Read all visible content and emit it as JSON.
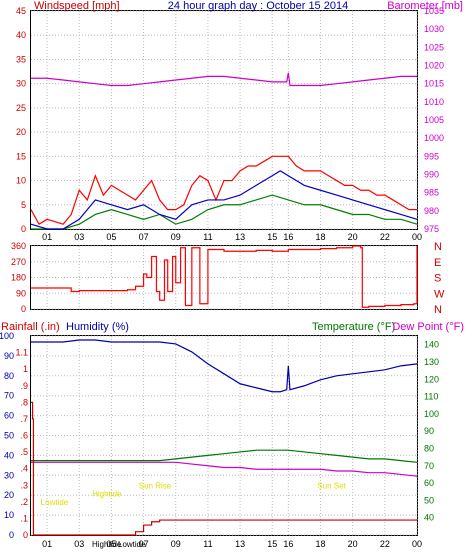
{
  "colors": {
    "frame": "#000000",
    "wind_red": "#ff0000",
    "wind_blue": "#0000cc",
    "wind_green": "#008000",
    "baro": "#cc00cc",
    "humidity": "#0000aa",
    "temp": "#007700",
    "dew": "#cc00cc",
    "rain": "#cc0000",
    "events": "#dddd00"
  },
  "chart_data": [
    {
      "type": "line",
      "title": "24 hour graph day : October 15 2014",
      "left_axis_label": "Windspeed [mph]",
      "right_axis_label": "Barometer [mb]",
      "x_ticks": [
        "01",
        "03",
        "05",
        "07",
        "09",
        "11",
        "13",
        "15",
        "16",
        "18",
        "20",
        "22",
        "00"
      ],
      "x_tick_hours": [
        1,
        3,
        5,
        7,
        9,
        11,
        13,
        15,
        16,
        18,
        20,
        22,
        24
      ],
      "x_range": [
        0,
        24
      ],
      "left_ticks": [
        0,
        5,
        10,
        15,
        20,
        25,
        30,
        35,
        40,
        45
      ],
      "left_range": [
        0,
        45
      ],
      "right_ticks": [
        975,
        980,
        985,
        990,
        995,
        1000,
        1005,
        1010,
        1015,
        1020,
        1025,
        1030,
        1035
      ],
      "right_range": [
        975,
        1035
      ],
      "grid": true,
      "series": [
        {
          "id": "gust",
          "color": "#ff0000",
          "x": [
            0,
            0.5,
            1,
            2,
            2.5,
            3,
            3.5,
            4,
            4.5,
            5,
            6,
            6.5,
            7,
            7.5,
            8,
            8.5,
            9,
            9.5,
            10,
            10.5,
            11,
            11.5,
            12,
            12.5,
            13,
            13.5,
            14,
            14.5,
            15,
            15.5,
            16,
            16.5,
            17,
            17.5,
            18,
            18.5,
            19,
            19.5,
            20,
            20.5,
            21,
            21.5,
            22,
            22.5,
            23,
            23.5,
            24
          ],
          "y": [
            4,
            1,
            2,
            1,
            3,
            8,
            6,
            11,
            7,
            9,
            7,
            6,
            8,
            10,
            6,
            4,
            4,
            5,
            9,
            11,
            10,
            6,
            10,
            10,
            12,
            13,
            13,
            14,
            15,
            15,
            15,
            13,
            12,
            12,
            12,
            11,
            10,
            9,
            9,
            8,
            8,
            7,
            7,
            6,
            5,
            4,
            4
          ]
        },
        {
          "id": "wind",
          "color": "#0000cc",
          "x": [
            0,
            1,
            2,
            3,
            3.5,
            4,
            5,
            6,
            7,
            8,
            9,
            10,
            11,
            12,
            13,
            14,
            15,
            15.5,
            16,
            17,
            18,
            19,
            20,
            21,
            22,
            23,
            24
          ],
          "y": [
            1,
            0,
            0,
            2,
            4,
            6,
            5,
            4,
            5,
            3,
            2,
            5,
            6,
            6,
            7,
            9,
            11,
            12,
            11,
            9,
            8,
            7,
            6,
            5,
            4,
            3,
            2
          ]
        },
        {
          "id": "avg",
          "color": "#008000",
          "x": [
            0,
            1,
            2,
            3,
            4,
            5,
            6,
            7,
            8,
            9,
            10,
            11,
            12,
            13,
            14,
            15,
            16,
            17,
            18,
            19,
            20,
            21,
            22,
            23,
            24
          ],
          "y": [
            0,
            0,
            0,
            1,
            3,
            4,
            3,
            2,
            3,
            1,
            2,
            4,
            5,
            5,
            6,
            7,
            6,
            5,
            5,
            4,
            3,
            3,
            2,
            2,
            1
          ]
        },
        {
          "id": "barometer",
          "axis": "right",
          "color": "#cc00cc",
          "x": [
            0,
            1,
            2,
            3,
            4,
            5,
            6,
            7,
            8,
            9,
            10,
            11,
            12,
            13,
            14,
            15,
            15.9,
            16,
            16.1,
            17,
            18,
            19,
            20,
            21,
            22,
            23,
            24
          ],
          "y": [
            1016.5,
            1016.5,
            1016,
            1015.5,
            1015,
            1014.5,
            1014.5,
            1015,
            1015.5,
            1016,
            1016.5,
            1017,
            1017,
            1016.5,
            1016,
            1015.5,
            1015.5,
            1018,
            1014.5,
            1014.5,
            1014.5,
            1015,
            1015.5,
            1016,
            1016.5,
            1017,
            1017
          ]
        }
      ]
    },
    {
      "type": "line",
      "left_ticks": [
        0,
        90,
        180,
        270,
        360
      ],
      "left_range": [
        0,
        360
      ],
      "right_labels": [
        "N",
        "W",
        "S",
        "E",
        "N"
      ],
      "x_range": [
        0,
        24
      ],
      "grid": true,
      "series": [
        {
          "id": "direction",
          "color": "#ff0000",
          "x": [
            0,
            1,
            2,
            2.5,
            3,
            4,
            5,
            6,
            6.5,
            7,
            7.2,
            7.5,
            7.8,
            8,
            8.3,
            8.5,
            8.8,
            9,
            9.3,
            9.6,
            10,
            10.5,
            11,
            11.5,
            12,
            13,
            14,
            15,
            16,
            17,
            18,
            19,
            20,
            20.5,
            20.6,
            21,
            22,
            23,
            23.8,
            24
          ],
          "y": [
            120,
            120,
            120,
            100,
            105,
            105,
            105,
            110,
            130,
            200,
            180,
            300,
            100,
            50,
            280,
            100,
            300,
            150,
            350,
            20,
            350,
            30,
            340,
            340,
            330,
            330,
            335,
            330,
            340,
            340,
            345,
            350,
            360,
            350,
            10,
            15,
            20,
            25,
            30,
            360
          ]
        }
      ]
    },
    {
      "type": "line",
      "left_axis_label": "Rainfall (.in)",
      "humidity_label": "Humidity (%)",
      "temp_label": "Temperature (°F)",
      "dew_label": "Dew Point (°F)",
      "x_ticks": [
        "01",
        "03",
        "05",
        "07",
        "09",
        "11",
        "13",
        "15",
        "16",
        "18",
        "20",
        "22",
        "00"
      ],
      "x_range": [
        0,
        24
      ],
      "rain_ticks": [
        0,
        0.1,
        0.2,
        0.3,
        0.4,
        0.5,
        0.6,
        0.7,
        0.8,
        0.9,
        1,
        1.1
      ],
      "rain_range": [
        0,
        1.2
      ],
      "humidity_ticks": [
        0,
        10,
        20,
        30,
        40,
        50,
        60,
        70,
        80,
        90,
        100
      ],
      "humidity_range": [
        0,
        100
      ],
      "temp_ticks": [
        40,
        50,
        60,
        70,
        80,
        90,
        100,
        110,
        120,
        130,
        140
      ],
      "temp_range": [
        30,
        145
      ],
      "grid": true,
      "annotations": [
        {
          "text": "Lowtide",
          "hour": 0.6,
          "value": 0.2
        },
        {
          "text": "Hightide",
          "hour": 3.8,
          "value": 0.25
        },
        {
          "text": "Sun Rise",
          "hour": 6.7,
          "value": 0.3
        },
        {
          "text": "Sun Set",
          "hour": 17.8,
          "value": 0.3
        }
      ],
      "bottom_events": [
        "Hightide",
        "Lowtide"
      ],
      "series": [
        {
          "id": "humidity",
          "axis": "humidity",
          "color": "#0000aa",
          "x": [
            0,
            1,
            2,
            3,
            4,
            5,
            6,
            7,
            8,
            9,
            10,
            11,
            12,
            13,
            14,
            15,
            15.5,
            15.9,
            16,
            16.1,
            17,
            18,
            19,
            20,
            21,
            22,
            23,
            24
          ],
          "y": [
            97,
            97,
            97,
            98,
            98,
            97,
            97,
            97,
            97,
            96,
            92,
            86,
            81,
            76,
            74,
            72,
            72,
            73,
            85,
            73,
            75,
            78,
            80,
            81,
            82,
            83,
            85,
            86
          ]
        },
        {
          "id": "temperature",
          "axis": "temp",
          "color": "#007700",
          "x": [
            0,
            1,
            2,
            3,
            4,
            5,
            6,
            7,
            8,
            9,
            10,
            11,
            12,
            13,
            14,
            15,
            16,
            17,
            18,
            19,
            20,
            21,
            22,
            23,
            24
          ],
          "y": [
            73,
            73,
            73,
            73,
            73,
            73,
            73,
            73,
            73,
            74,
            75,
            76,
            77,
            78,
            79,
            79,
            79,
            78,
            77,
            76,
            75,
            74,
            74,
            73,
            72
          ]
        },
        {
          "id": "dewpoint",
          "axis": "temp",
          "color": "#cc00cc",
          "x": [
            0,
            1,
            2,
            3,
            4,
            5,
            6,
            7,
            8,
            9,
            10,
            11,
            12,
            13,
            14,
            15,
            16,
            17,
            18,
            19,
            20,
            21,
            22,
            23,
            24
          ],
          "y": [
            72,
            72,
            72,
            72,
            72,
            72,
            72,
            72,
            72,
            72,
            71,
            70,
            69,
            69,
            68,
            68,
            68,
            68,
            68,
            67,
            67,
            66,
            66,
            65,
            64
          ]
        },
        {
          "id": "rainfall",
          "axis": "rain",
          "color": "#cc0000",
          "x": [
            0,
            0.1,
            0.15,
            6,
            6.5,
            7,
            7.5,
            8,
            9,
            12,
            18,
            24
          ],
          "y": [
            0.8,
            0.7,
            0,
            0,
            0.02,
            0.06,
            0.08,
            0.09,
            0.09,
            0.09,
            0.09,
            0.09
          ]
        }
      ]
    }
  ]
}
